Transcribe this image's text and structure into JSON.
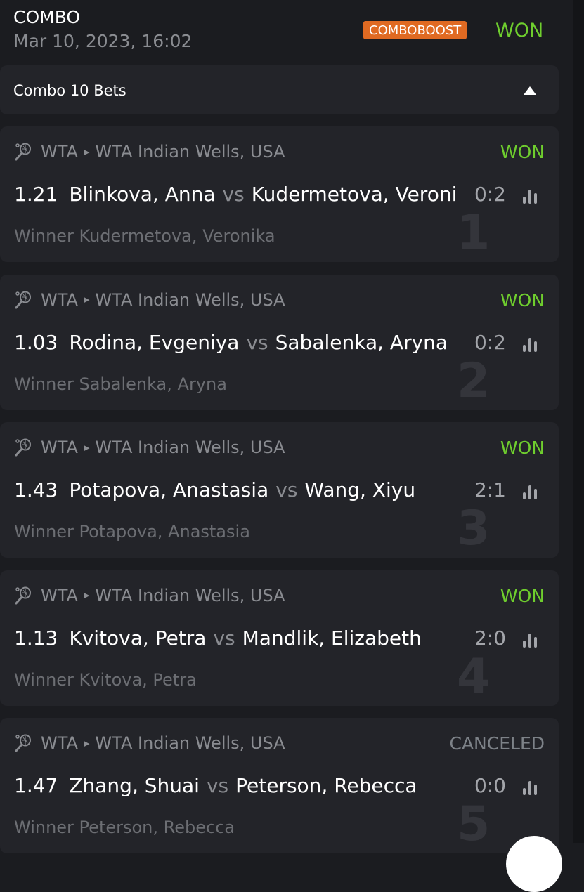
{
  "header": {
    "title": "COMBO",
    "date": "Mar 10, 2023, 16:02",
    "badge": "COMBOBOOST",
    "status": "WON"
  },
  "group": {
    "label": "Combo 10 Bets",
    "toggle_icon": "triangle-up-icon"
  },
  "colors": {
    "won": "#6fce2e",
    "canceled": "#7d8288",
    "badge": "#e06a22"
  },
  "bets": [
    {
      "index": "1",
      "sport": "WTA",
      "tournament": "WTA Indian Wells, USA",
      "status": "WON",
      "odds": "1.21",
      "home": "Blinkova, Anna",
      "vs": "vs",
      "away": "Kudermetova, Veronika",
      "score": "0:2",
      "selection": "Winner Kudermetova, Veronika"
    },
    {
      "index": "2",
      "sport": "WTA",
      "tournament": "WTA Indian Wells, USA",
      "status": "WON",
      "odds": "1.03",
      "home": "Rodina, Evgeniya",
      "vs": "vs",
      "away": "Sabalenka, Aryna",
      "score": "0:2",
      "selection": "Winner Sabalenka, Aryna"
    },
    {
      "index": "3",
      "sport": "WTA",
      "tournament": "WTA Indian Wells, USA",
      "status": "WON",
      "odds": "1.43",
      "home": "Potapova, Anastasia",
      "vs": "vs",
      "away": "Wang, Xiyu",
      "score": "2:1",
      "selection": "Winner Potapova, Anastasia"
    },
    {
      "index": "4",
      "sport": "WTA",
      "tournament": "WTA Indian Wells, USA",
      "status": "WON",
      "odds": "1.13",
      "home": "Kvitova, Petra",
      "vs": "vs",
      "away": "Mandlik, Elizabeth",
      "score": "2:0",
      "selection": "Winner Kvitova, Petra"
    },
    {
      "index": "5",
      "sport": "WTA",
      "tournament": "WTA Indian Wells, USA",
      "status": "CANCELED",
      "odds": "1.47",
      "home": "Zhang, Shuai",
      "vs": "vs",
      "away": "Peterson, Rebecca",
      "score": "0:0",
      "selection": "Winner Peterson, Rebecca"
    }
  ]
}
